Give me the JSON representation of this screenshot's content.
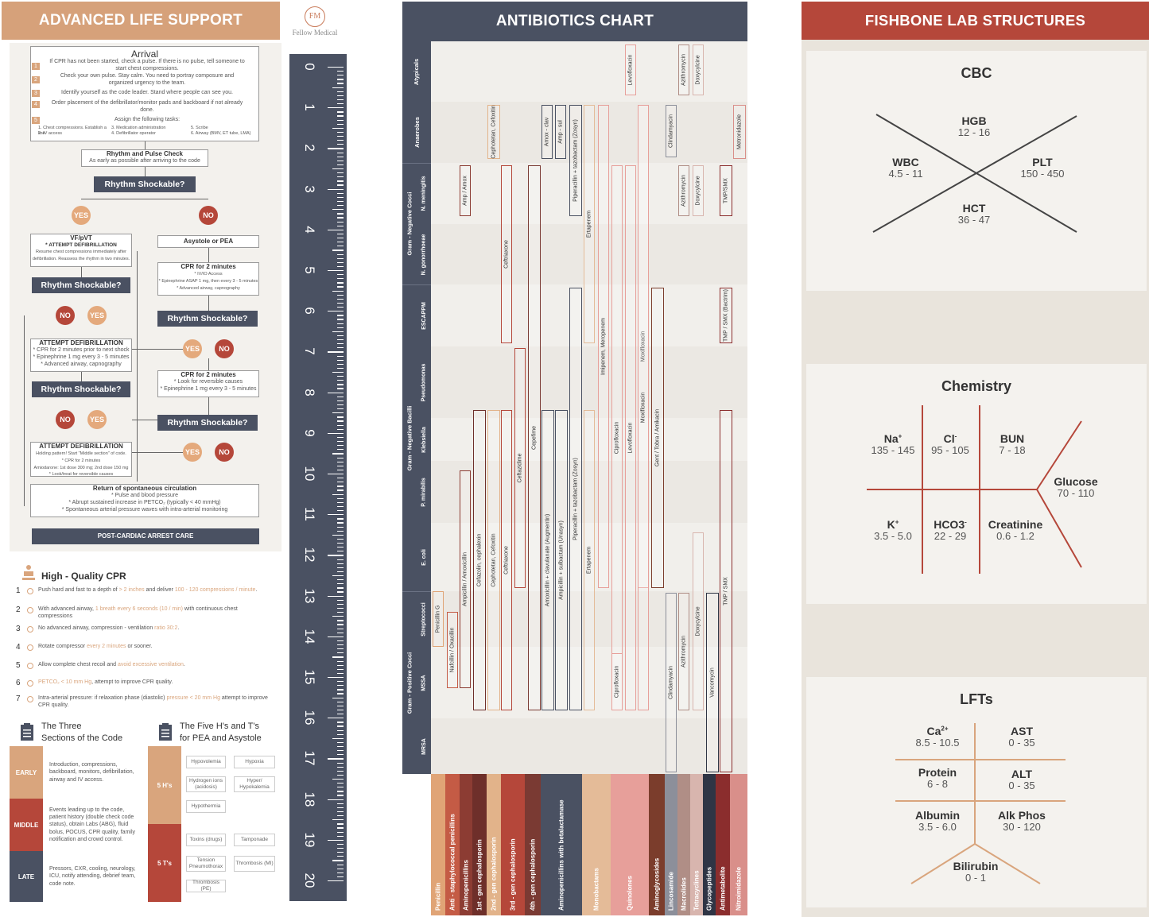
{
  "als": {
    "title": "ADVANCED LIFE SUPPORT",
    "logo_initials": "FM",
    "logo_text": "Fellow Medical",
    "arrival": {
      "title": "Arrival",
      "steps": [
        "If CPR has not been started, check a pulse. If there is no pulse, tell someone to start chest compressions.",
        "Check your own pulse. Stay calm. You need to portray composure and organized urgency to the team.",
        "Identify yourself as the code leader. Stand where people can see you.",
        "Order placement of the defibrillator/monitor pads and backboard if not already done.",
        "Assign the following tasks:"
      ],
      "tasks": [
        "1. Chest compressions. Establish a line.",
        "2. IV access",
        "3. Medication administration",
        "4. Defibrillator operator",
        "5. Scribe",
        "6. Airway (BMV, ET tube, LMA)"
      ]
    },
    "rhythm_check": {
      "title": "Rhythm and Pulse Check",
      "sub": "As early as possible after arriving to the code"
    },
    "shockable": "Rhythm Shockable?",
    "yes": "YES",
    "no": "NO",
    "vf": {
      "title": "VF/pVT",
      "sub": "* ATTEMPT DEFIBRILLATION",
      "text": "Resume chest compressions immediately after defibrillation. Reassess the rhythm in two minutes."
    },
    "asystole": "Asystole or PEA",
    "cpr2a": {
      "title": "CPR for 2 minutes",
      "l1": "* IV/IO Access",
      "l2": "* Epinephrine ASAP 1 mg, then every 3 - 5 minutes",
      "l3": "* Advanced airway, capnography"
    },
    "defib2": {
      "title": "ATTEMPT DEFIBRILLATION",
      "l1": "* CPR for 2 minutes prior to next shock",
      "l2": "* Epinephrine 1 mg every 3 - 5 minutes",
      "l3": "* Advanced airway, capnography"
    },
    "cpr2b": {
      "title": "CPR for 2 minutes",
      "l1": "* Look for reversible causes",
      "l2": "* Epinephrine 1 mg every 3 - 5 minutes"
    },
    "defib3": {
      "title": "ATTEMPT DEFIBRILLATION",
      "l1": "Holding pattern! Start \"Middle section\" of code.",
      "l2": "* CPR for 2 minutes",
      "l3": "Amiodarone: 1st dose 300 mg; 2nd dose 150 mg",
      "l4": "* Look/treat for reversible causes"
    },
    "rosc": {
      "title": "Return of spontaneous circulation",
      "l1": "* Pulse and blood pressure",
      "l2": "* Abrupt sustained increase in PETCO₂ (typically < 40 mmHg)",
      "l3": "* Spontaneous arterial pressure waves with intra-arterial monitoring"
    },
    "post": "POST-CARDIAC ARREST CARE",
    "ruler": [
      "0",
      "1",
      "2",
      "3",
      "4",
      "5",
      "6",
      "7",
      "8",
      "9",
      "10",
      "11",
      "12",
      "13",
      "14",
      "15",
      "16",
      "17",
      "18",
      "19",
      "20"
    ]
  },
  "cpr": {
    "title": "High - Quality CPR",
    "items": [
      {
        "n": "1",
        "pre": "Push hard and fast to a depth of ",
        "hl": "> 2 inches",
        "mid": " and deliver ",
        "hl2": "100 - 120 compressions / minute",
        "post": "."
      },
      {
        "n": "2",
        "pre": "With advanced airway, ",
        "hl": "1 breath every 6 seconds (10 / min)",
        "mid": " with continuous chest compressions",
        "hl2": "",
        "post": ""
      },
      {
        "n": "3",
        "pre": "No advanced airway, compression - ventilation ",
        "hl": "ratio 30:2",
        "mid": ".",
        "hl2": "",
        "post": ""
      },
      {
        "n": "4",
        "pre": "Rotate compressor ",
        "hl": "every 2 minutes",
        "mid": " or sooner.",
        "hl2": "",
        "post": ""
      },
      {
        "n": "5",
        "pre": "Allow complete chest recoil and ",
        "hl": "avoid excessive ventilation",
        "mid": ".",
        "hl2": "",
        "post": ""
      },
      {
        "n": "6",
        "pre": "",
        "hl": "PETCO₂ < 10 mm Hg",
        "mid": ", attempt to improve CPR quality.",
        "hl2": "",
        "post": ""
      },
      {
        "n": "7",
        "pre": "Intra-arterial pressure: if relaxation phase (diastolic) ",
        "hl": "pressure < 20 mm Hg",
        "mid": " attempt to improve CPR quality.",
        "hl2": "",
        "post": ""
      }
    ]
  },
  "sections": {
    "title1": "The Three",
    "title2": "Sections of the Code",
    "rows": [
      {
        "label": "EARLY",
        "text": "Introduction, compressions, backboard, monitors, defibrillation, airway and IV access."
      },
      {
        "label": "MIDDLE",
        "text": "Events leading up to the code, patient history (double check code status), obtain Labs (ABG), fluid bolus, POCUS, CPR quality, family notification and crowd control."
      },
      {
        "label": "LATE",
        "text": "Pressors, CXR, cooling, neurology, ICU, notify attending, debrief team, code note."
      }
    ]
  },
  "hts": {
    "title1": "The Five H's and T's",
    "title2": "for PEA and Asystole",
    "h_label": "5 H's",
    "t_label": "5 T's",
    "h": [
      "Hypovolemia",
      "Hypoxia",
      "Hydrogen ions (acidosis)",
      "Hyper/ Hypokalemia",
      "Hypothermia"
    ],
    "t": [
      "Toxins (drugs)",
      "Tamponade",
      "Tension Pneumothorax",
      "Thrombosis (MI)",
      "Thrombosis (PE)"
    ]
  },
  "abx": {
    "title": "ANTIBIOTICS CHART",
    "groups": [
      "Atypicals",
      "Anaerobes",
      "Gram - Negative Cocci",
      "Gram - Negative Bacilli",
      "Gram - Positive Cocci"
    ],
    "organisms": [
      "N. meningitis",
      "N. gonorrhoeae",
      "ESCAPPM",
      "Pseudomonas",
      "Klebsiella",
      "P. mirabilis",
      "E. coli",
      "Streptococci",
      "MSSA",
      "MRSA"
    ],
    "classes": [
      "Penicillin",
      "Anti - staphylococcal penicillins",
      "Aminopenicillins",
      "1st - gen cephalosporin",
      "2nd - gen cephalosporin",
      "3rd - gen cephalosporin",
      "4th - gen cephalosporin",
      "Aminopenicillins with betalactamase",
      "Monobactams",
      "Quinolones",
      "Aminoglycosides",
      "Lincosamide",
      "Macrolides",
      "Tetracyclines",
      "Glycopeptides",
      "Antimetabolite",
      "Nitroimidazole"
    ],
    "drugs": [
      "Penicillin G",
      "Nafcillin / Oxacillin",
      "Ampicillin / Amoxicillin",
      "Amp / Amox",
      "Cefazolin, cephalexin",
      "Cephotetan, Cefoxitin",
      "Cephotetan, Cefoxitin",
      "Ceftriaxone",
      "Ceftriaxone",
      "Ceftazidime",
      "Cepefime",
      "Amoxicillin + clavulanate (Augmentin)",
      "Amox - clav",
      "Ampicillin + sulbactam (Unasyn)",
      "Amp - sul",
      "Piperacillin + tazobactam (Zosyn)",
      "Piperacillin + tazobactam (Zosyn)",
      "Ertapenem",
      "Ertapenem",
      "Imipenem, Meropenem",
      "Ciprofloxacin",
      "Ciprofloxacin",
      "Levofloxacin",
      "Levofloxacin",
      "Moxifloxacin",
      "Moxifloxacin",
      "Gent / Tobra / Amikacin",
      "Clindamyacin",
      "Clindamyacin",
      "Azithromycin",
      "Azithromycin",
      "Azithromycin",
      "Doxycylcine",
      "Doxycylcine",
      "Doxycylcine",
      "Vancomycin",
      "TMP / SMX",
      "TMP/SMX",
      "TMP / SMX (Bactrim)",
      "Metronidazole"
    ]
  },
  "fish": {
    "title": "FISHBONE LAB STRUCTURES",
    "cbc": {
      "title": "CBC",
      "hgb": "HGB",
      "hgb_v": "12 - 16",
      "wbc": "WBC",
      "wbc_v": "4.5 - 11",
      "plt": "PLT",
      "plt_v": "150 - 450",
      "hct": "HCT",
      "hct_v": "36 - 47"
    },
    "chem": {
      "title": "Chemistry",
      "na": "Na",
      "na_sup": "+",
      "na_v": "135 - 145",
      "cl": "Cl",
      "cl_sup": "-",
      "cl_v": "95 - 105",
      "bun": "BUN",
      "bun_v": "7 - 18",
      "glu": "Glucose",
      "glu_v": "70 - 110",
      "k": "K",
      "k_sup": "+",
      "k_v": "3.5 - 5.0",
      "hco3": "HCO3",
      "hco3_sup": "-",
      "hco3_v": "22 - 29",
      "cr": "Creatinine",
      "cr_v": "0.6 - 1.2"
    },
    "lft": {
      "title": "LFTs",
      "ca": "Ca",
      "ca_sup": "2+",
      "ca_v": "8.5 - 10.5",
      "ast": "AST",
      "ast_v": "0 - 35",
      "prot": "Protein",
      "prot_v": "6 - 8",
      "alt": "ALT",
      "alt_v": "0 - 35",
      "alb": "Albumin",
      "alb_v": "3.5 - 6.0",
      "alk": "Alk Phos",
      "alk_v": "30 - 120",
      "bili": "Bilirubin",
      "bili_v": "0 - 1"
    }
  }
}
